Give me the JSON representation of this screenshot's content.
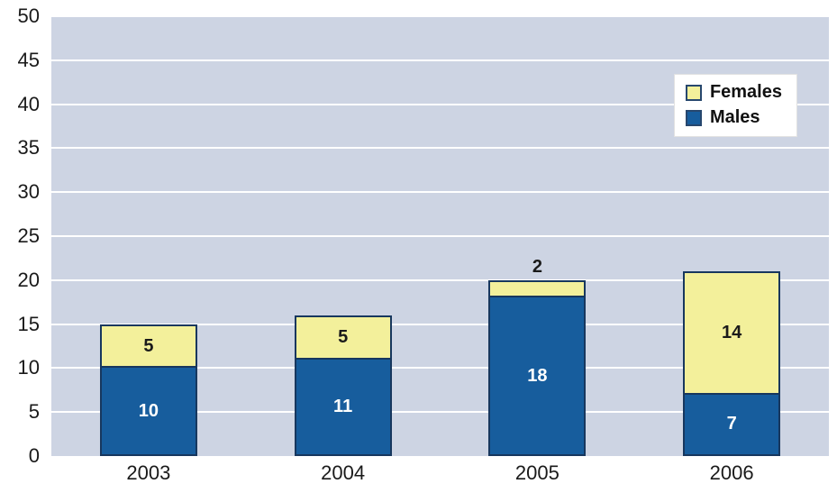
{
  "chart_data": {
    "type": "bar",
    "stacked": true,
    "title": "",
    "xlabel": "",
    "ylabel": "",
    "categories": [
      "2003",
      "2004",
      "2005",
      "2006"
    ],
    "series": [
      {
        "name": "Males",
        "color": "#175d9d",
        "label_color": "#ffffff",
        "values": [
          10,
          11,
          18,
          7
        ],
        "label_placement": [
          "inside",
          "inside",
          "inside",
          "inside"
        ]
      },
      {
        "name": "Females",
        "color": "#f3f09b",
        "label_color": "#1a1a1a",
        "values": [
          5,
          5,
          2,
          14
        ],
        "label_placement": [
          "inside",
          "inside",
          "above",
          "inside"
        ]
      }
    ],
    "totals": [
      15,
      16,
      20,
      21
    ],
    "ylim": [
      0,
      50
    ],
    "y_ticks": [
      0,
      5,
      10,
      15,
      20,
      25,
      30,
      35,
      40,
      45,
      50
    ],
    "grid": "horizontal",
    "legend": {
      "position": "top-right",
      "entries": [
        {
          "label": "Females",
          "swatch_color": "#f3f09b"
        },
        {
          "label": "Males",
          "swatch_color": "#175d9d"
        }
      ]
    },
    "colors": {
      "plot_background": "#cdd4e3",
      "gridline": "#ffffff",
      "bar_border": "#17375e",
      "axis_text": "#1a1a1a",
      "page_background": "#ffffff"
    }
  }
}
